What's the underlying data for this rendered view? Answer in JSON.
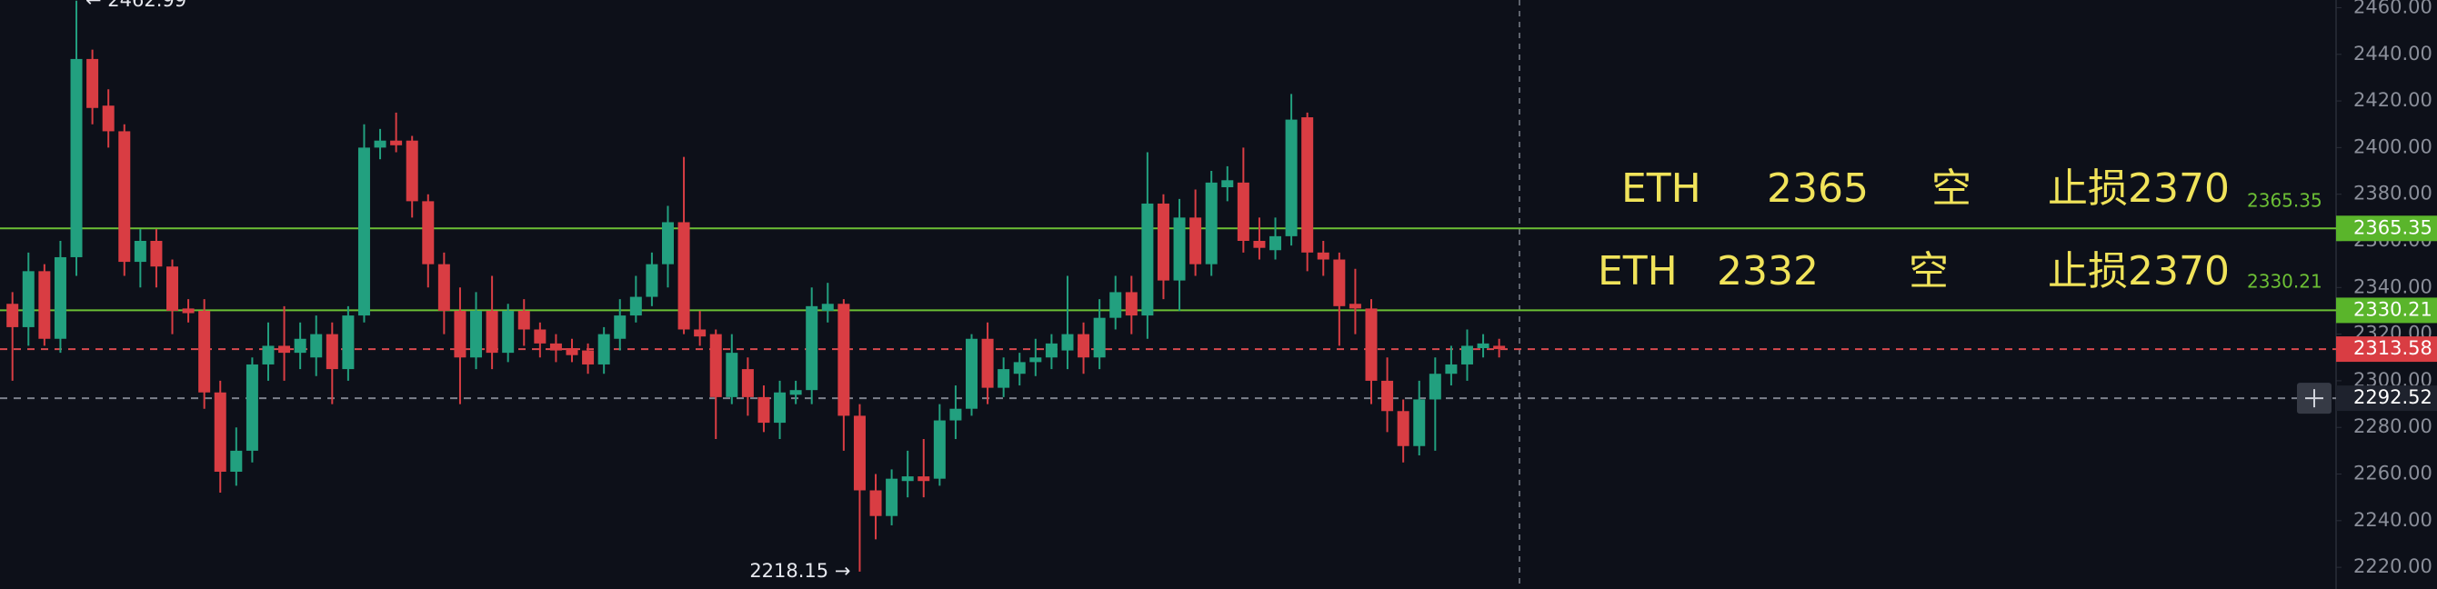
{
  "chart_data": {
    "type": "candlestick",
    "open": [
      2333,
      2323,
      2347,
      2318,
      2353,
      2438,
      2418,
      2407,
      2351,
      2360,
      2349,
      2331,
      2330,
      2295,
      2261,
      2270,
      2307,
      2315,
      2312,
      2310,
      2320,
      2305,
      2328,
      2400,
      2403,
      2403,
      2377,
      2350,
      2330,
      2310,
      2330,
      2312,
      2330,
      2322,
      2316,
      2314,
      2313,
      2307,
      2318,
      2328,
      2336,
      2350,
      2368,
      2322,
      2320,
      2293,
      2305,
      2293,
      2282,
      2294,
      2296,
      2330,
      2333,
      2285,
      2253,
      2242,
      2257,
      2259,
      2258,
      2283,
      2288,
      2318,
      2297,
      2303,
      2308,
      2310,
      2313,
      2320,
      2310,
      2327,
      2338,
      2328,
      2376,
      2343,
      2370,
      2350,
      2383,
      2385,
      2360,
      2356,
      2362,
      2413,
      2355,
      2352,
      2333,
      2331,
      2300,
      2287,
      2272,
      2292,
      2303,
      2307,
      2314,
      2315
    ],
    "high": [
      2338,
      2355,
      2350,
      2360,
      2462.99,
      2442,
      2425,
      2410,
      2365,
      2365,
      2352,
      2335,
      2335,
      2300,
      2280,
      2310,
      2325,
      2332,
      2325,
      2328,
      2325,
      2332,
      2410,
      2408,
      2415,
      2405,
      2380,
      2355,
      2340,
      2338,
      2345,
      2333,
      2335,
      2325,
      2320,
      2318,
      2316,
      2323,
      2335,
      2345,
      2355,
      2375,
      2396,
      2330,
      2322,
      2320,
      2310,
      2298,
      2300,
      2300,
      2340,
      2342,
      2335,
      2290,
      2260,
      2262,
      2270,
      2275,
      2290,
      2298,
      2320,
      2325,
      2310,
      2312,
      2318,
      2320,
      2345,
      2325,
      2335,
      2345,
      2345,
      2398,
      2380,
      2378,
      2382,
      2390,
      2392,
      2400,
      2370,
      2370,
      2423,
      2415,
      2360,
      2355,
      2348,
      2335,
      2310,
      2292,
      2300,
      2310,
      2315,
      2322,
      2320,
      2318
    ],
    "low": [
      2300,
      2315,
      2315,
      2312,
      2345,
      2410,
      2400,
      2345,
      2340,
      2340,
      2320,
      2325,
      2288,
      2252,
      2255,
      2265,
      2300,
      2300,
      2305,
      2302,
      2290,
      2300,
      2325,
      2395,
      2398,
      2370,
      2340,
      2320,
      2290,
      2305,
      2305,
      2308,
      2315,
      2310,
      2308,
      2308,
      2303,
      2303,
      2313,
      2325,
      2332,
      2340,
      2320,
      2315,
      2275,
      2290,
      2285,
      2278,
      2275,
      2290,
      2290,
      2325,
      2270,
      2218.15,
      2232,
      2238,
      2250,
      2250,
      2255,
      2275,
      2285,
      2290,
      2293,
      2298,
      2302,
      2305,
      2305,
      2303,
      2305,
      2322,
      2320,
      2318,
      2335,
      2330,
      2345,
      2345,
      2377,
      2355,
      2352,
      2352,
      2358,
      2347,
      2345,
      2315,
      2320,
      2290,
      2278,
      2265,
      2268,
      2270,
      2298,
      2300,
      2310,
      2310
    ],
    "close": [
      2323,
      2347,
      2318,
      2353,
      2438,
      2417,
      2407,
      2351,
      2360,
      2349,
      2330,
      2329,
      2295,
      2261,
      2270,
      2307,
      2315,
      2312,
      2318,
      2320,
      2305,
      2328,
      2400,
      2403,
      2401,
      2377,
      2350,
      2330,
      2310,
      2330,
      2312,
      2330,
      2322,
      2316,
      2313,
      2311,
      2307,
      2320,
      2328,
      2336,
      2350,
      2368,
      2322,
      2319,
      2293,
      2312,
      2293,
      2282,
      2295,
      2296,
      2332,
      2333,
      2285,
      2253,
      2242,
      2258,
      2259,
      2257,
      2283,
      2288,
      2318,
      2297,
      2305,
      2308,
      2310,
      2316,
      2320,
      2310,
      2327,
      2338,
      2328,
      2376,
      2343,
      2370,
      2350,
      2385,
      2386,
      2360,
      2357,
      2362,
      2412,
      2355,
      2352,
      2332,
      2331,
      2300,
      2287,
      2272,
      2292,
      2303,
      2307,
      2315,
      2316,
      2313.58
    ],
    "up_color": "#22a07f",
    "down_color": "#d93d43",
    "high_label": "← 2462.99",
    "low_label": "2218.15 →",
    "ylim": [
      2210.7,
      2463.3
    ],
    "yticks": [
      {
        "value": 2220,
        "label": "2220.00"
      },
      {
        "value": 2240,
        "label": "2240.00"
      },
      {
        "value": 2260,
        "label": "2260.00"
      },
      {
        "value": 2280,
        "label": "2280.00"
      },
      {
        "value": 2300,
        "label": "2300.00"
      },
      {
        "value": 2320,
        "label": "2320.00"
      },
      {
        "value": 2340,
        "label": "2340.00"
      },
      {
        "value": 2360,
        "label": "2360.00"
      },
      {
        "value": 2380,
        "label": "2380.00"
      },
      {
        "value": 2400,
        "label": "2400.00"
      },
      {
        "value": 2420,
        "label": "2420.00"
      },
      {
        "value": 2440,
        "label": "2440.00"
      },
      {
        "value": 2460,
        "label": "2460.00"
      }
    ],
    "levels": [
      {
        "value": 2365.35,
        "color": "#6cbf35",
        "box_color": "#5ab52b",
        "style": "solid"
      },
      {
        "value": 2330.21,
        "color": "#6cbf35",
        "box_color": "#5ab52b",
        "style": "solid"
      },
      {
        "value": 2313.58,
        "color": "#d94a4f",
        "box_color": "#d93d43",
        "style": "dashed"
      },
      {
        "value": 2292.52,
        "color": "#7d818c",
        "box_color": "#1e222d",
        "style": "dashed"
      }
    ],
    "annotations": [
      [
        "ETH",
        "2365",
        "空",
        "止损2370"
      ],
      [
        "ETH",
        "2332",
        "空",
        "止损2370"
      ]
    ],
    "annotation_color": "#f0e35a"
  }
}
